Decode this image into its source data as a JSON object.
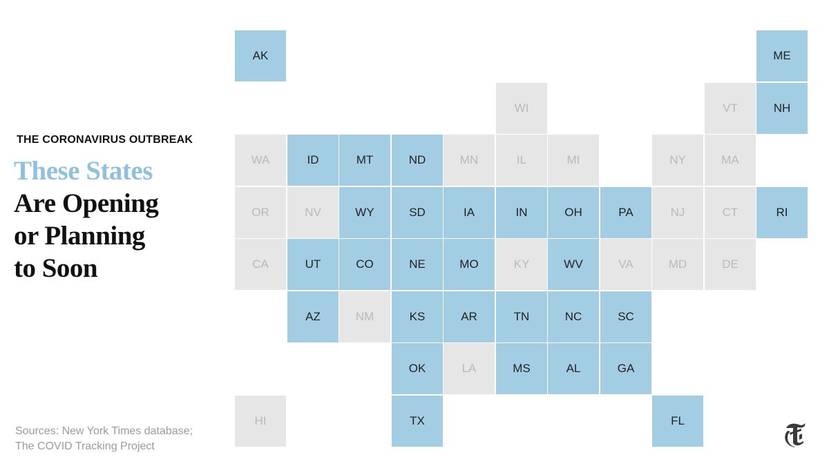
{
  "kicker": "THE CORONAVIRUS OUTBREAK",
  "headline": {
    "accent": "These States",
    "line2": "Are Opening",
    "line3": "or Planning",
    "line4": "to Soon"
  },
  "sources": {
    "line1": "Sources: New York Times database;",
    "line2": "The COVID Tracking Project"
  },
  "colors": {
    "opening": "#a3cde3",
    "not_opening": "#e6e6e6",
    "accent_text": "#8fc1de"
  },
  "logo_icon": "nyt-logo-icon",
  "states": [
    {
      "abbr": "AK",
      "col": 0,
      "row": 0,
      "opening": true
    },
    {
      "abbr": "ME",
      "col": 10,
      "row": 0,
      "opening": true
    },
    {
      "abbr": "WI",
      "col": 5,
      "row": 1,
      "opening": false
    },
    {
      "abbr": "VT",
      "col": 9,
      "row": 1,
      "opening": false
    },
    {
      "abbr": "NH",
      "col": 10,
      "row": 1,
      "opening": true
    },
    {
      "abbr": "WA",
      "col": 0,
      "row": 2,
      "opening": false
    },
    {
      "abbr": "ID",
      "col": 1,
      "row": 2,
      "opening": true
    },
    {
      "abbr": "MT",
      "col": 2,
      "row": 2,
      "opening": true
    },
    {
      "abbr": "ND",
      "col": 3,
      "row": 2,
      "opening": true
    },
    {
      "abbr": "MN",
      "col": 4,
      "row": 2,
      "opening": false
    },
    {
      "abbr": "IL",
      "col": 5,
      "row": 2,
      "opening": false
    },
    {
      "abbr": "MI",
      "col": 6,
      "row": 2,
      "opening": false
    },
    {
      "abbr": "NY",
      "col": 8,
      "row": 2,
      "opening": false
    },
    {
      "abbr": "MA",
      "col": 9,
      "row": 2,
      "opening": false
    },
    {
      "abbr": "OR",
      "col": 0,
      "row": 3,
      "opening": false
    },
    {
      "abbr": "NV",
      "col": 1,
      "row": 3,
      "opening": false
    },
    {
      "abbr": "WY",
      "col": 2,
      "row": 3,
      "opening": true
    },
    {
      "abbr": "SD",
      "col": 3,
      "row": 3,
      "opening": true
    },
    {
      "abbr": "IA",
      "col": 4,
      "row": 3,
      "opening": true
    },
    {
      "abbr": "IN",
      "col": 5,
      "row": 3,
      "opening": true
    },
    {
      "abbr": "OH",
      "col": 6,
      "row": 3,
      "opening": true
    },
    {
      "abbr": "PA",
      "col": 7,
      "row": 3,
      "opening": true
    },
    {
      "abbr": "NJ",
      "col": 8,
      "row": 3,
      "opening": false
    },
    {
      "abbr": "CT",
      "col": 9,
      "row": 3,
      "opening": false
    },
    {
      "abbr": "RI",
      "col": 10,
      "row": 3,
      "opening": true
    },
    {
      "abbr": "CA",
      "col": 0,
      "row": 4,
      "opening": false
    },
    {
      "abbr": "UT",
      "col": 1,
      "row": 4,
      "opening": true
    },
    {
      "abbr": "CO",
      "col": 2,
      "row": 4,
      "opening": true
    },
    {
      "abbr": "NE",
      "col": 3,
      "row": 4,
      "opening": true
    },
    {
      "abbr": "MO",
      "col": 4,
      "row": 4,
      "opening": true
    },
    {
      "abbr": "KY",
      "col": 5,
      "row": 4,
      "opening": false
    },
    {
      "abbr": "WV",
      "col": 6,
      "row": 4,
      "opening": true
    },
    {
      "abbr": "VA",
      "col": 7,
      "row": 4,
      "opening": false
    },
    {
      "abbr": "MD",
      "col": 8,
      "row": 4,
      "opening": false
    },
    {
      "abbr": "DE",
      "col": 9,
      "row": 4,
      "opening": false
    },
    {
      "abbr": "AZ",
      "col": 1,
      "row": 5,
      "opening": true
    },
    {
      "abbr": "NM",
      "col": 2,
      "row": 5,
      "opening": false
    },
    {
      "abbr": "KS",
      "col": 3,
      "row": 5,
      "opening": true
    },
    {
      "abbr": "AR",
      "col": 4,
      "row": 5,
      "opening": true
    },
    {
      "abbr": "TN",
      "col": 5,
      "row": 5,
      "opening": true
    },
    {
      "abbr": "NC",
      "col": 6,
      "row": 5,
      "opening": true
    },
    {
      "abbr": "SC",
      "col": 7,
      "row": 5,
      "opening": true
    },
    {
      "abbr": "OK",
      "col": 3,
      "row": 6,
      "opening": true
    },
    {
      "abbr": "LA",
      "col": 4,
      "row": 6,
      "opening": false
    },
    {
      "abbr": "MS",
      "col": 5,
      "row": 6,
      "opening": true
    },
    {
      "abbr": "AL",
      "col": 6,
      "row": 6,
      "opening": true
    },
    {
      "abbr": "GA",
      "col": 7,
      "row": 6,
      "opening": true
    },
    {
      "abbr": "HI",
      "col": 0,
      "row": 7,
      "opening": false
    },
    {
      "abbr": "TX",
      "col": 3,
      "row": 7,
      "opening": true
    },
    {
      "abbr": "FL",
      "col": 8,
      "row": 7,
      "opening": true
    }
  ]
}
